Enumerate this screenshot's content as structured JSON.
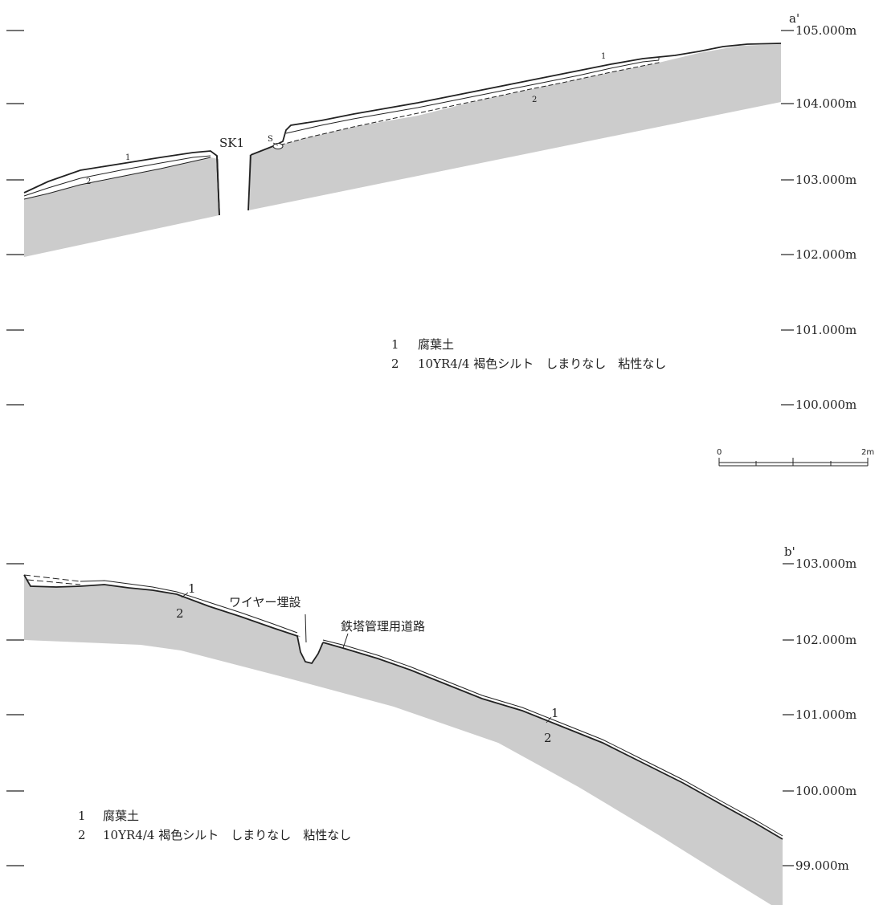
{
  "section_a": {
    "end_label": "a'",
    "elevations": [
      "105.000m",
      "104.000m",
      "103.000m",
      "102.000m",
      "101.000m",
      "100.000m"
    ],
    "feature_label": "SK1",
    "stone_label": "S",
    "layer_marks": [
      "1",
      "2",
      "1",
      "2"
    ],
    "legend": [
      {
        "num": "1",
        "text": "腐葉土"
      },
      {
        "num": "2",
        "text": "10YR4/4 褐色シルト　しまりなし　粘性なし"
      }
    ]
  },
  "scale_bar": {
    "zero": "0",
    "end": "2m"
  },
  "section_b": {
    "end_label": "b'",
    "elevations": [
      "103.000m",
      "102.000m",
      "101.000m",
      "100.000m",
      "99.000m"
    ],
    "annotations": [
      "ワイヤー埋設",
      "鉄塔管理用道路"
    ],
    "layer_marks": [
      "1",
      "2",
      "1",
      "2"
    ],
    "legend": [
      {
        "num": "1",
        "text": "腐葉土"
      },
      {
        "num": "2",
        "text": "10YR4/4 褐色シルト　しまりなし　粘性なし"
      }
    ]
  },
  "colors": {
    "subsoil_fill": "#cccccc",
    "line": "#222222",
    "background": "#ffffff"
  }
}
